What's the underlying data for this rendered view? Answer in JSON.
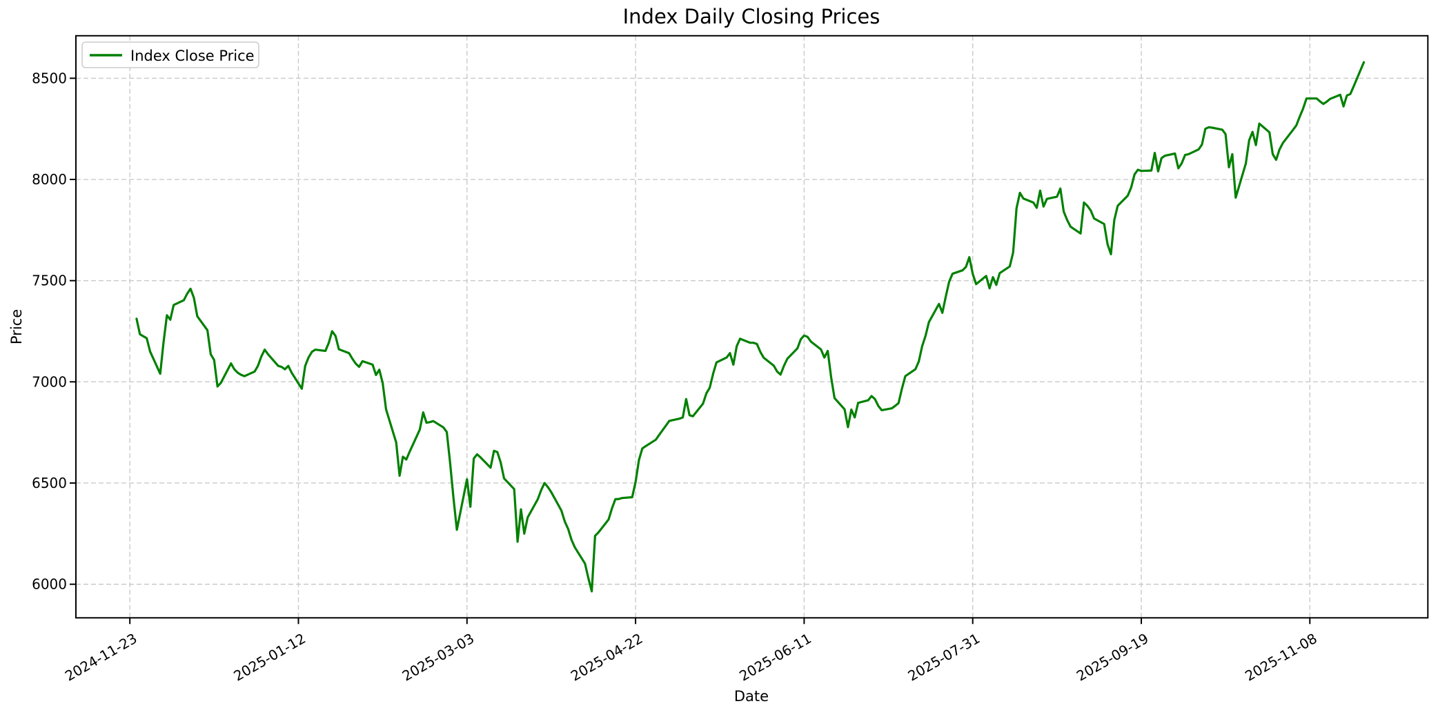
{
  "chart_data": {
    "type": "line",
    "title": "Index Daily Closing Prices",
    "xlabel": "Date",
    "ylabel": "Price",
    "grid": true,
    "grid_style": "dashed",
    "legend_position": "upper left",
    "background_color": "#ffffff",
    "x_tick_labels": [
      "2024-11-23",
      "2025-01-12",
      "2025-03-03",
      "2025-04-22",
      "2025-06-11",
      "2025-07-31",
      "2025-09-19",
      "2025-11-08"
    ],
    "y_tick_labels": [
      6000,
      6500,
      7000,
      7500,
      8000,
      8500
    ],
    "ylim": [
      5834,
      8710
    ],
    "xlim": [
      "2024-11-07",
      "2025-12-13"
    ],
    "series": [
      {
        "name": "Index Close Price",
        "color": "#008000",
        "points": [
          [
            "2024-11-25",
            7312
          ],
          [
            "2024-11-26",
            7235
          ],
          [
            "2024-11-27",
            7225
          ],
          [
            "2024-11-28",
            7216
          ],
          [
            "2024-11-29",
            7150
          ],
          [
            "2024-12-02",
            7040
          ],
          [
            "2024-12-03",
            7195
          ],
          [
            "2024-12-04",
            7329
          ],
          [
            "2024-12-05",
            7307
          ],
          [
            "2024-12-06",
            7380
          ],
          [
            "2024-12-09",
            7403
          ],
          [
            "2024-12-10",
            7435
          ],
          [
            "2024-12-11",
            7460
          ],
          [
            "2024-12-12",
            7415
          ],
          [
            "2024-12-13",
            7324
          ],
          [
            "2024-12-16",
            7255
          ],
          [
            "2024-12-17",
            7136
          ],
          [
            "2024-12-18",
            7108
          ],
          [
            "2024-12-19",
            6977
          ],
          [
            "2024-12-20",
            6995
          ],
          [
            "2024-12-23",
            7091
          ],
          [
            "2024-12-24",
            7062
          ],
          [
            "2024-12-25",
            7045
          ],
          [
            "2024-12-26",
            7035
          ],
          [
            "2024-12-27",
            7028
          ],
          [
            "2024-12-30",
            7051
          ],
          [
            "2024-12-31",
            7079
          ],
          [
            "2025-01-01",
            7125
          ],
          [
            "2025-01-02",
            7159
          ],
          [
            "2025-01-03",
            7136
          ],
          [
            "2025-01-06",
            7079
          ],
          [
            "2025-01-07",
            7074
          ],
          [
            "2025-01-08",
            7062
          ],
          [
            "2025-01-09",
            7079
          ],
          [
            "2025-01-10",
            7045
          ],
          [
            "2025-01-13",
            6966
          ],
          [
            "2025-01-14",
            7079
          ],
          [
            "2025-01-15",
            7120
          ],
          [
            "2025-01-16",
            7148
          ],
          [
            "2025-01-17",
            7159
          ],
          [
            "2025-01-20",
            7153
          ],
          [
            "2025-01-21",
            7193
          ],
          [
            "2025-01-22",
            7250
          ],
          [
            "2025-01-23",
            7227
          ],
          [
            "2025-01-24",
            7161
          ],
          [
            "2025-01-27",
            7142
          ],
          [
            "2025-01-28",
            7114
          ],
          [
            "2025-01-29",
            7090
          ],
          [
            "2025-01-30",
            7074
          ],
          [
            "2025-01-31",
            7102
          ],
          [
            "2025-02-03",
            7085
          ],
          [
            "2025-02-04",
            7034
          ],
          [
            "2025-02-05",
            7060
          ],
          [
            "2025-02-06",
            6994
          ],
          [
            "2025-02-07",
            6864
          ],
          [
            "2025-02-10",
            6700
          ],
          [
            "2025-02-11",
            6536
          ],
          [
            "2025-02-12",
            6630
          ],
          [
            "2025-02-13",
            6616
          ],
          [
            "2025-02-14",
            6655
          ],
          [
            "2025-02-17",
            6764
          ],
          [
            "2025-02-18",
            6849
          ],
          [
            "2025-02-19",
            6798
          ],
          [
            "2025-02-20",
            6801
          ],
          [
            "2025-02-21",
            6806
          ],
          [
            "2025-02-24",
            6775
          ],
          [
            "2025-02-25",
            6752
          ],
          [
            "2025-02-26",
            6600
          ],
          [
            "2025-02-27",
            6426
          ],
          [
            "2025-02-28",
            6269
          ],
          [
            "2025-03-03",
            6519
          ],
          [
            "2025-03-04",
            6383
          ],
          [
            "2025-03-05",
            6621
          ],
          [
            "2025-03-06",
            6642
          ],
          [
            "2025-03-07",
            6627
          ],
          [
            "2025-03-10",
            6576
          ],
          [
            "2025-03-11",
            6659
          ],
          [
            "2025-03-12",
            6653
          ],
          [
            "2025-03-13",
            6602
          ],
          [
            "2025-03-14",
            6523
          ],
          [
            "2025-03-17",
            6470
          ],
          [
            "2025-03-18",
            6210
          ],
          [
            "2025-03-19",
            6370
          ],
          [
            "2025-03-20",
            6250
          ],
          [
            "2025-03-21",
            6330
          ],
          [
            "2025-03-24",
            6420
          ],
          [
            "2025-03-25",
            6465
          ],
          [
            "2025-03-26",
            6500
          ],
          [
            "2025-03-27",
            6480
          ],
          [
            "2025-03-28",
            6455
          ],
          [
            "2025-03-31",
            6364
          ],
          [
            "2025-04-01",
            6310
          ],
          [
            "2025-04-02",
            6273
          ],
          [
            "2025-04-03",
            6220
          ],
          [
            "2025-04-04",
            6182
          ],
          [
            "2025-04-07",
            6102
          ],
          [
            "2025-04-08",
            6030
          ],
          [
            "2025-04-09",
            5965
          ],
          [
            "2025-04-10",
            6239
          ],
          [
            "2025-04-11",
            6256
          ],
          [
            "2025-04-14",
            6320
          ],
          [
            "2025-04-15",
            6375
          ],
          [
            "2025-04-16",
            6420
          ],
          [
            "2025-04-17",
            6421
          ],
          [
            "2025-04-18",
            6426
          ],
          [
            "2025-04-21",
            6430
          ],
          [
            "2025-04-22",
            6505
          ],
          [
            "2025-04-23",
            6614
          ],
          [
            "2025-04-24",
            6671
          ],
          [
            "2025-04-25",
            6682
          ],
          [
            "2025-04-28",
            6714
          ],
          [
            "2025-04-29",
            6738
          ],
          [
            "2025-04-30",
            6761
          ],
          [
            "2025-05-01",
            6784
          ],
          [
            "2025-05-02",
            6807
          ],
          [
            "2025-05-05",
            6818
          ],
          [
            "2025-05-06",
            6824
          ],
          [
            "2025-05-07",
            6915
          ],
          [
            "2025-05-08",
            6835
          ],
          [
            "2025-05-09",
            6830
          ],
          [
            "2025-05-12",
            6892
          ],
          [
            "2025-05-13",
            6943
          ],
          [
            "2025-05-14",
            6971
          ],
          [
            "2025-05-15",
            7040
          ],
          [
            "2025-05-16",
            7096
          ],
          [
            "2025-05-19",
            7120
          ],
          [
            "2025-05-20",
            7142
          ],
          [
            "2025-05-21",
            7085
          ],
          [
            "2025-05-22",
            7176
          ],
          [
            "2025-05-23",
            7213
          ],
          [
            "2025-05-26",
            7193
          ],
          [
            "2025-05-27",
            7193
          ],
          [
            "2025-05-28",
            7187
          ],
          [
            "2025-05-29",
            7148
          ],
          [
            "2025-05-30",
            7119
          ],
          [
            "2025-06-02",
            7080
          ],
          [
            "2025-06-03",
            7051
          ],
          [
            "2025-06-04",
            7036
          ],
          [
            "2025-06-05",
            7079
          ],
          [
            "2025-06-06",
            7114
          ],
          [
            "2025-06-09",
            7165
          ],
          [
            "2025-06-10",
            7210
          ],
          [
            "2025-06-11",
            7229
          ],
          [
            "2025-06-12",
            7222
          ],
          [
            "2025-06-13",
            7199
          ],
          [
            "2025-06-16",
            7160
          ],
          [
            "2025-06-17",
            7120
          ],
          [
            "2025-06-18",
            7153
          ],
          [
            "2025-06-19",
            7023
          ],
          [
            "2025-06-20",
            6920
          ],
          [
            "2025-06-23",
            6864
          ],
          [
            "2025-06-24",
            6776
          ],
          [
            "2025-06-25",
            6863
          ],
          [
            "2025-06-26",
            6824
          ],
          [
            "2025-06-27",
            6896
          ],
          [
            "2025-06-30",
            6909
          ],
          [
            "2025-07-01",
            6930
          ],
          [
            "2025-07-02",
            6915
          ],
          [
            "2025-07-03",
            6881
          ],
          [
            "2025-07-04",
            6860
          ],
          [
            "2025-07-07",
            6869
          ],
          [
            "2025-07-08",
            6881
          ],
          [
            "2025-07-09",
            6895
          ],
          [
            "2025-07-10",
            6966
          ],
          [
            "2025-07-11",
            7028
          ],
          [
            "2025-07-14",
            7062
          ],
          [
            "2025-07-15",
            7100
          ],
          [
            "2025-07-16",
            7176
          ],
          [
            "2025-07-17",
            7227
          ],
          [
            "2025-07-18",
            7295
          ],
          [
            "2025-07-21",
            7385
          ],
          [
            "2025-07-22",
            7341
          ],
          [
            "2025-07-23",
            7420
          ],
          [
            "2025-07-24",
            7494
          ],
          [
            "2025-07-25",
            7534
          ],
          [
            "2025-07-28",
            7551
          ],
          [
            "2025-07-29",
            7568
          ],
          [
            "2025-07-30",
            7616
          ],
          [
            "2025-07-31",
            7534
          ],
          [
            "2025-08-01",
            7483
          ],
          [
            "2025-08-04",
            7523
          ],
          [
            "2025-08-05",
            7462
          ],
          [
            "2025-08-06",
            7517
          ],
          [
            "2025-08-07",
            7479
          ],
          [
            "2025-08-08",
            7537
          ],
          [
            "2025-08-11",
            7570
          ],
          [
            "2025-08-12",
            7640
          ],
          [
            "2025-08-13",
            7858
          ],
          [
            "2025-08-14",
            7934
          ],
          [
            "2025-08-15",
            7906
          ],
          [
            "2025-08-18",
            7886
          ],
          [
            "2025-08-19",
            7860
          ],
          [
            "2025-08-20",
            7945
          ],
          [
            "2025-08-21",
            7866
          ],
          [
            "2025-08-22",
            7904
          ],
          [
            "2025-08-25",
            7915
          ],
          [
            "2025-08-26",
            7955
          ],
          [
            "2025-08-27",
            7841
          ],
          [
            "2025-08-28",
            7800
          ],
          [
            "2025-08-29",
            7767
          ],
          [
            "2025-09-01",
            7733
          ],
          [
            "2025-09-02",
            7886
          ],
          [
            "2025-09-03",
            7870
          ],
          [
            "2025-09-04",
            7847
          ],
          [
            "2025-09-05",
            7807
          ],
          [
            "2025-09-08",
            7780
          ],
          [
            "2025-09-09",
            7680
          ],
          [
            "2025-09-10",
            7631
          ],
          [
            "2025-09-11",
            7800
          ],
          [
            "2025-09-12",
            7870
          ],
          [
            "2025-09-15",
            7920
          ],
          [
            "2025-09-16",
            7960
          ],
          [
            "2025-09-17",
            8025
          ],
          [
            "2025-09-18",
            8048
          ],
          [
            "2025-09-19",
            8042
          ],
          [
            "2025-09-22",
            8044
          ],
          [
            "2025-09-23",
            8131
          ],
          [
            "2025-09-24",
            8040
          ],
          [
            "2025-09-25",
            8105
          ],
          [
            "2025-09-26",
            8117
          ],
          [
            "2025-09-29",
            8128
          ],
          [
            "2025-09-30",
            8055
          ],
          [
            "2025-10-01",
            8080
          ],
          [
            "2025-10-02",
            8121
          ],
          [
            "2025-10-03",
            8125
          ],
          [
            "2025-10-06",
            8148
          ],
          [
            "2025-10-07",
            8172
          ],
          [
            "2025-10-08",
            8250
          ],
          [
            "2025-10-09",
            8258
          ],
          [
            "2025-10-10",
            8256
          ],
          [
            "2025-10-13",
            8246
          ],
          [
            "2025-10-14",
            8224
          ],
          [
            "2025-10-15",
            8060
          ],
          [
            "2025-10-16",
            8125
          ],
          [
            "2025-10-17",
            7910
          ],
          [
            "2025-10-20",
            8079
          ],
          [
            "2025-10-21",
            8193
          ],
          [
            "2025-10-22",
            8235
          ],
          [
            "2025-10-23",
            8170
          ],
          [
            "2025-10-24",
            8276
          ],
          [
            "2025-10-27",
            8233
          ],
          [
            "2025-10-28",
            8125
          ],
          [
            "2025-10-29",
            8097
          ],
          [
            "2025-10-30",
            8148
          ],
          [
            "2025-10-31",
            8180
          ],
          [
            "2025-11-03",
            8245
          ],
          [
            "2025-11-04",
            8267
          ],
          [
            "2025-11-05",
            8310
          ],
          [
            "2025-11-06",
            8350
          ],
          [
            "2025-11-07",
            8400
          ],
          [
            "2025-11-10",
            8400
          ],
          [
            "2025-11-11",
            8386
          ],
          [
            "2025-11-12",
            8373
          ],
          [
            "2025-11-13",
            8384
          ],
          [
            "2025-11-14",
            8398
          ],
          [
            "2025-11-17",
            8418
          ],
          [
            "2025-11-18",
            8361
          ],
          [
            "2025-11-19",
            8415
          ],
          [
            "2025-11-20",
            8422
          ],
          [
            "2025-11-21",
            8460
          ],
          [
            "2025-11-24",
            8579
          ]
        ]
      }
    ]
  }
}
